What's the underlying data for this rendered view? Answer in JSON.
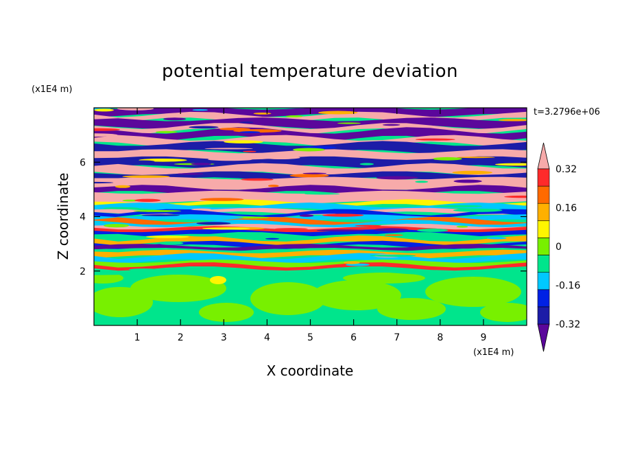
{
  "chart_data": {
    "type": "heatmap",
    "title": "potential temperature deviation",
    "xlabel": "X coordinate",
    "ylabel": "Z coordinate",
    "x_unit": "(x1E4 m)",
    "y_unit": "(x1E4 m)",
    "time_label": "t=3.2796e+06",
    "xlim": [
      0,
      10
    ],
    "ylim": [
      0,
      8
    ],
    "x_ticks": [
      1,
      2,
      3,
      4,
      5,
      6,
      7,
      8,
      9
    ],
    "y_ticks": [
      2,
      4,
      6
    ],
    "x_tick_labels": [
      "1",
      "2",
      "3",
      "4",
      "5",
      "6",
      "7",
      "8",
      "9"
    ],
    "y_tick_labels": [
      "2",
      "4",
      "6"
    ],
    "colorbar": {
      "levels": [
        -0.4,
        -0.32,
        -0.24,
        -0.16,
        -0.08,
        0,
        0.08,
        0.16,
        0.24,
        0.32,
        0.4
      ],
      "colors": [
        "#5b079b",
        "#1c1ca7",
        "#0021e4",
        "#00c8ff",
        "#00e58c",
        "#78f000",
        "#fff500",
        "#ffb000",
        "#ff6a00",
        "#ff2a2a",
        "#f7aaaa"
      ],
      "labels": [
        "0.32",
        "0.16",
        "0",
        "-0.16",
        "-0.32"
      ],
      "label_values": [
        0.32,
        0.16,
        0,
        -0.16,
        -0.32
      ],
      "extends": "both"
    },
    "grid": false,
    "legend": "right"
  }
}
